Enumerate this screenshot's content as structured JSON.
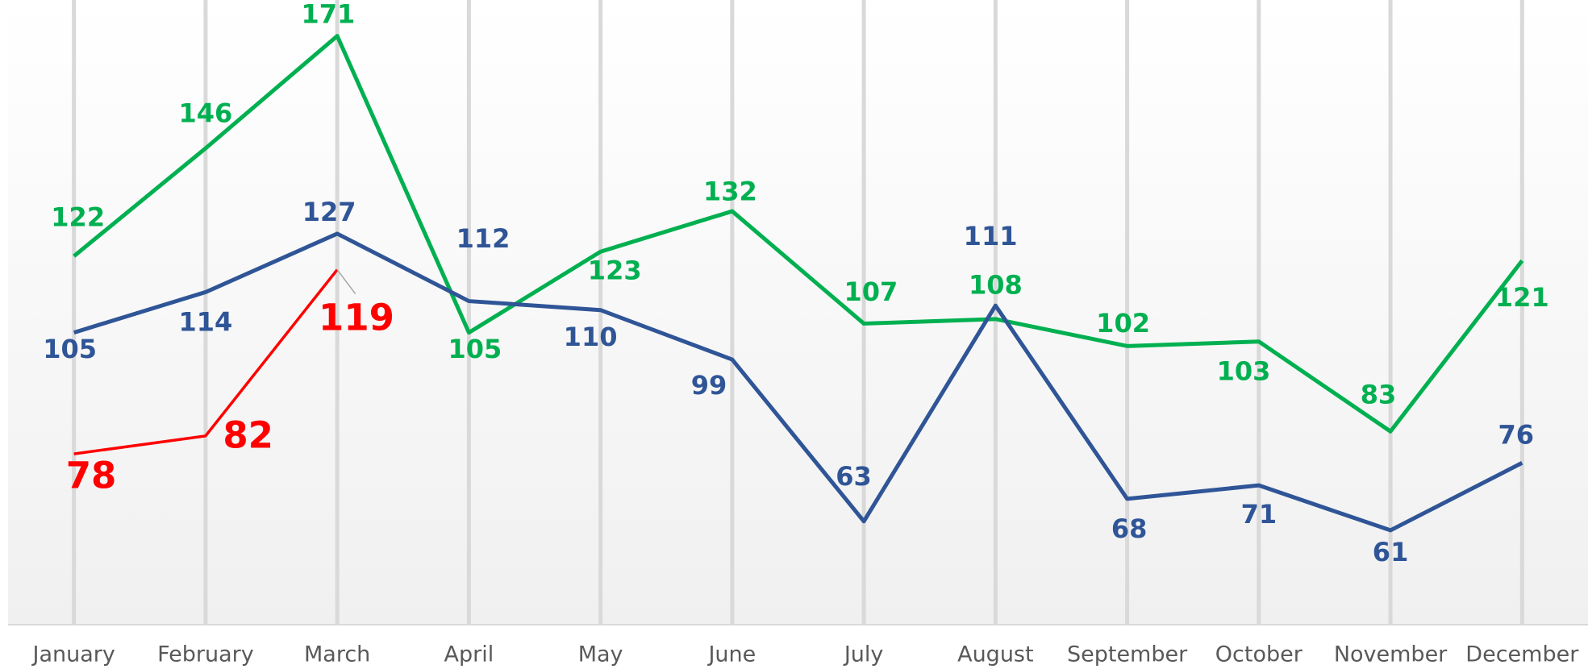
{
  "chart_data": {
    "type": "line",
    "categories": [
      "January",
      "February",
      "March",
      "April",
      "May",
      "June",
      "July",
      "August",
      "September",
      "October",
      "November",
      "December"
    ],
    "series": [
      {
        "color": "#00b050",
        "values": [
          122,
          146,
          171,
          105,
          123,
          132,
          107,
          108,
          102,
          103,
          83,
          121
        ]
      },
      {
        "color": "#2f5597",
        "values": [
          105,
          114,
          127,
          112,
          110,
          99,
          63,
          111,
          68,
          71,
          61,
          76
        ]
      },
      {
        "color": "#ff0000",
        "values": [
          78,
          82,
          119,
          null,
          null,
          null,
          null,
          null,
          null,
          null,
          null,
          null
        ]
      }
    ],
    "ylim": [
      40,
      179
    ],
    "grid": true
  }
}
